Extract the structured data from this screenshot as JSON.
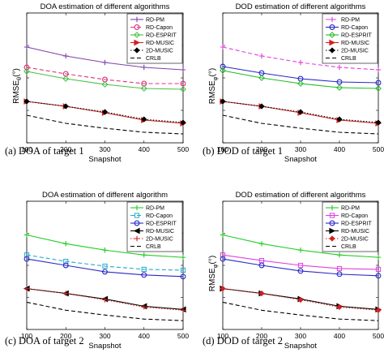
{
  "chart_data": [
    {
      "type": "line",
      "caption": "(a) DOA of target 1",
      "title": "DOA estimation of different algorithms",
      "xlabel": "Snapshot",
      "ylabel": "RMSE_θ(°)",
      "xlim": [
        100,
        500
      ],
      "ylim": [
        0.2,
        1.0
      ],
      "xticks": [
        100,
        200,
        300,
        400,
        500
      ],
      "yticks": [
        0.2,
        0.4,
        0.6,
        0.8,
        1.0
      ],
      "legend_position": "top-right",
      "x": [
        100,
        200,
        300,
        400,
        500
      ],
      "series": [
        {
          "name": "RD-PM",
          "color": "#8040a8",
          "dash": "solid",
          "marker": "plus",
          "values": [
            0.79,
            0.735,
            0.695,
            0.665,
            0.65
          ]
        },
        {
          "name": "RD-Capon",
          "color": "#e0307a",
          "dash": "dashed",
          "marker": "circle",
          "values": [
            0.665,
            0.625,
            0.59,
            0.565,
            0.565
          ]
        },
        {
          "name": "RD-ESPRIT",
          "color": "#44c044",
          "dash": "solid",
          "marker": "diamond",
          "values": [
            0.64,
            0.595,
            0.56,
            0.535,
            0.53
          ]
        },
        {
          "name": "RD-MUSIC",
          "color": "#d41f1f",
          "dash": "solid",
          "marker": "triangle-right",
          "values": [
            0.455,
            0.425,
            0.385,
            0.34,
            0.32
          ]
        },
        {
          "name": "2D-MUSIC",
          "color": "#000000",
          "dash": "dotted",
          "marker": "dot",
          "values": [
            0.455,
            0.425,
            0.39,
            0.345,
            0.325
          ]
        },
        {
          "name": "CRLB",
          "color": "#000000",
          "dash": "dashed",
          "marker": "none",
          "values": [
            0.37,
            0.32,
            0.29,
            0.265,
            0.255
          ]
        }
      ]
    },
    {
      "type": "line",
      "caption": "(b) DOD of target 1",
      "title": "DOD estimation of different algorithms",
      "xlabel": "Snapshot",
      "ylabel": "RMSE_φ(°)",
      "xlim": [
        100,
        500
      ],
      "ylim": [
        0.2,
        1.0
      ],
      "xticks": [
        100,
        200,
        300,
        400,
        500
      ],
      "yticks": [
        0.2,
        0.4,
        0.6,
        0.8,
        1.0
      ],
      "legend_position": "top-right",
      "x": [
        100,
        200,
        300,
        400,
        500
      ],
      "series": [
        {
          "name": "RD-PM",
          "color": "#e040e0",
          "dash": "dashed",
          "marker": "plus",
          "values": [
            0.79,
            0.735,
            0.695,
            0.665,
            0.65
          ]
        },
        {
          "name": "RD-Capon",
          "color": "#2828c8",
          "dash": "solid",
          "marker": "circle",
          "values": [
            0.67,
            0.63,
            0.595,
            0.575,
            0.57
          ]
        },
        {
          "name": "RD-ESPRIT",
          "color": "#22bb22",
          "dash": "solid",
          "marker": "diamond",
          "values": [
            0.645,
            0.6,
            0.565,
            0.54,
            0.535
          ]
        },
        {
          "name": "RD-MUSIC",
          "color": "#d41f1f",
          "dash": "solid",
          "marker": "triangle-right",
          "values": [
            0.455,
            0.425,
            0.385,
            0.34,
            0.32
          ]
        },
        {
          "name": "2D-MUSIC",
          "color": "#000000",
          "dash": "dotted",
          "marker": "dot",
          "values": [
            0.455,
            0.425,
            0.39,
            0.345,
            0.325
          ]
        },
        {
          "name": "CRLB",
          "color": "#000000",
          "dash": "dashed",
          "marker": "none",
          "values": [
            0.37,
            0.32,
            0.29,
            0.265,
            0.255
          ]
        }
      ]
    },
    {
      "type": "line",
      "caption": "(c) DOA of target 2",
      "title": "DOA estimation of different algorithm",
      "xlabel": "Snapshot",
      "ylabel": "",
      "xlim": [
        100,
        500
      ],
      "ylim": [
        0.2,
        1.0
      ],
      "xticks": [
        100,
        200,
        300,
        400,
        500
      ],
      "yticks": [
        0.2,
        0.4,
        0.6,
        0.8,
        1.0
      ],
      "legend_position": "top-right",
      "x": [
        100,
        200,
        300,
        400,
        500
      ],
      "series": [
        {
          "name": "RD-PM",
          "color": "#22cc22",
          "dash": "solid",
          "marker": "plus",
          "values": [
            0.79,
            0.735,
            0.695,
            0.665,
            0.65
          ]
        },
        {
          "name": "RD-Capon",
          "color": "#22aacc",
          "dash": "dashed",
          "marker": "square",
          "values": [
            0.665,
            0.625,
            0.595,
            0.575,
            0.57
          ]
        },
        {
          "name": "RD-ESPRIT",
          "color": "#2828c8",
          "dash": "solid",
          "marker": "circle",
          "values": [
            0.64,
            0.6,
            0.56,
            0.54,
            0.53
          ]
        },
        {
          "name": "RD-MUSIC",
          "color": "#000000",
          "dash": "solid",
          "marker": "triangle-left",
          "values": [
            0.455,
            0.425,
            0.39,
            0.345,
            0.325
          ]
        },
        {
          "name": "2D-MUSIC",
          "color": "#d41f1f",
          "dash": "dotted",
          "marker": "plus",
          "values": [
            0.455,
            0.425,
            0.385,
            0.34,
            0.32
          ]
        },
        {
          "name": "CRLB",
          "color": "#000000",
          "dash": "dashed",
          "marker": "none",
          "values": [
            0.37,
            0.32,
            0.29,
            0.265,
            0.255
          ]
        }
      ]
    },
    {
      "type": "line",
      "caption": "(d) DOD of target 2",
      "title": "DOD estimation of different algorithms",
      "xlabel": "Snapshot",
      "ylabel": "RMSE_φ(°)",
      "xlim": [
        100,
        500
      ],
      "ylim": [
        0.2,
        1.0
      ],
      "xticks": [
        100,
        200,
        300,
        400,
        500
      ],
      "yticks": [
        0.2,
        0.4,
        0.6,
        0.8,
        1.0
      ],
      "legend_position": "top-right",
      "x": [
        100,
        200,
        300,
        400,
        500
      ],
      "series": [
        {
          "name": "RD-PM",
          "color": "#22cc22",
          "dash": "solid",
          "marker": "plus",
          "values": [
            0.79,
            0.735,
            0.695,
            0.665,
            0.65
          ]
        },
        {
          "name": "RD-Capon",
          "color": "#e040e0",
          "dash": "solid",
          "marker": "square",
          "values": [
            0.665,
            0.63,
            0.6,
            0.58,
            0.575
          ]
        },
        {
          "name": "RD-ESPRIT",
          "color": "#2828c8",
          "dash": "solid",
          "marker": "circle",
          "values": [
            0.64,
            0.6,
            0.565,
            0.545,
            0.535
          ]
        },
        {
          "name": "RD-MUSIC",
          "color": "#000000",
          "dash": "solid",
          "marker": "triangle-right",
          "values": [
            0.455,
            0.425,
            0.39,
            0.345,
            0.325
          ]
        },
        {
          "name": "2D-MUSIC",
          "color": "#d41f1f",
          "dash": "dotted",
          "marker": "dot",
          "values": [
            0.455,
            0.425,
            0.385,
            0.34,
            0.32
          ]
        },
        {
          "name": "CRLB",
          "color": "#000000",
          "dash": "dashed",
          "marker": "none",
          "values": [
            0.37,
            0.32,
            0.29,
            0.265,
            0.255
          ]
        }
      ]
    }
  ]
}
